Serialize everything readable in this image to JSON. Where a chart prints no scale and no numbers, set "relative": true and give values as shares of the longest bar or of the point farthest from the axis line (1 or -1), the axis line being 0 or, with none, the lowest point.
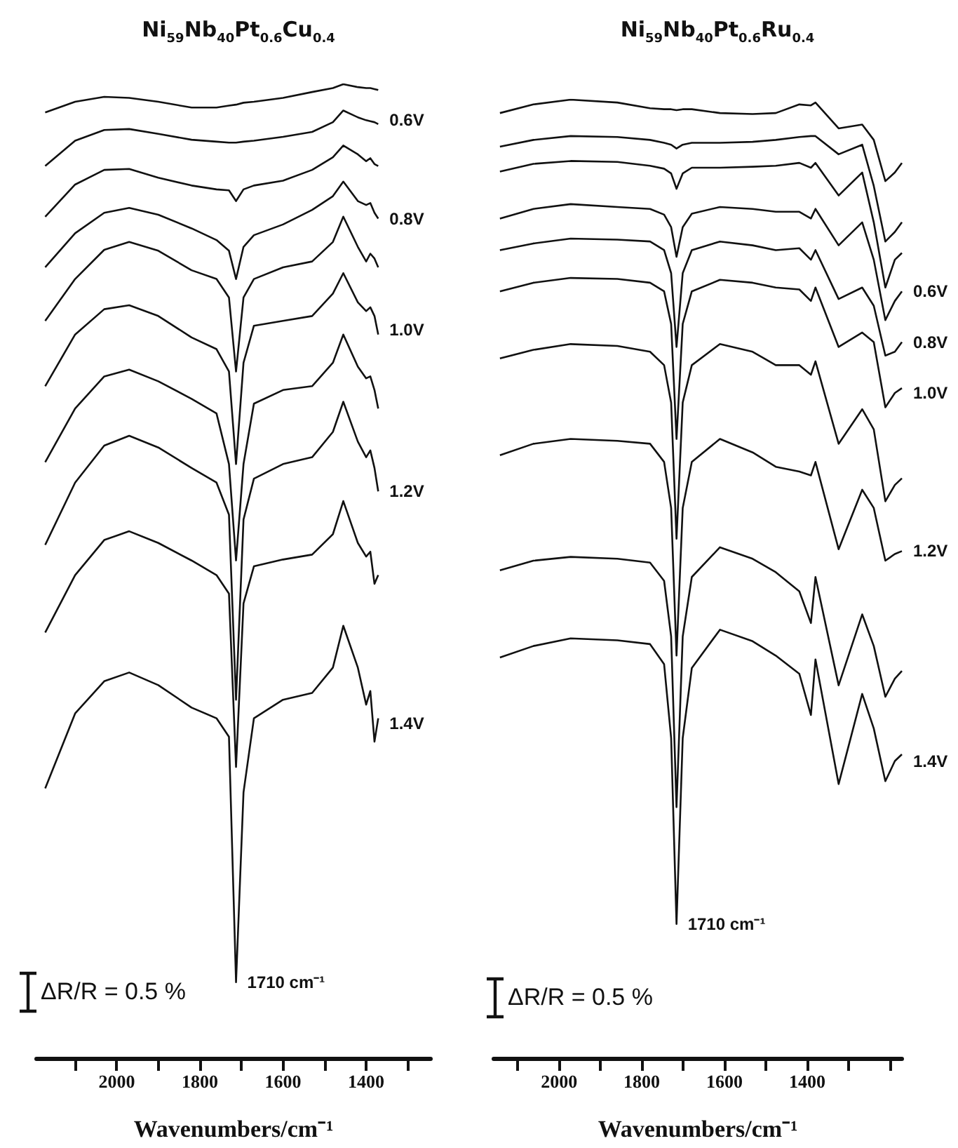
{
  "chart_data": [
    {
      "type": "line",
      "title": "Ni$_{59}$Nb$_{40}$Pt$_{0.6}$Cu$_{0.4}$",
      "xlabel": "Wavenumbers/cm⁻¹",
      "relative": true,
      "tick_labels": "x",
      "xlim": [
        2193,
        1245
      ],
      "xticks": [
        {
          "value": 2100,
          "label": null
        },
        2000,
        {
          "value": 1900,
          "label": null
        },
        1800,
        {
          "value": 1700,
          "label": null
        },
        1600,
        {
          "value": 1500,
          "label": null
        },
        1400,
        {
          "value": 1300,
          "label": null
        }
      ],
      "x": [
        2172,
        2100,
        2030,
        1970,
        1900,
        1820,
        1760,
        1730,
        1713,
        1695,
        1670,
        1600,
        1530,
        1480,
        1455,
        1420,
        1400,
        1390,
        1380,
        1371
      ],
      "series": [
        {
          "color": "#111111",
          "values": [
            0.971,
            0.982,
            0.987,
            0.986,
            0.982,
            0.976,
            0.976,
            0.978,
            0.979,
            0.981,
            0.982,
            0.986,
            0.992,
            0.996,
            1,
            0.997,
            0.996,
            0.996,
            0.995,
            0.994
          ]
        },
        {
          "color": "#111111",
          "values": [
            0.916,
            0.942,
            0.953,
            0.954,
            0.949,
            0.943,
            0.941,
            0.94,
            0.94,
            0.941,
            0.942,
            0.946,
            0.951,
            0.961,
            0.973,
            0.966,
            0.963,
            0.962,
            0.961,
            0.959
          ]
        },
        {
          "color": "#111111",
          "values": [
            0.864,
            0.897,
            0.912,
            0.913,
            0.904,
            0.896,
            0.892,
            0.891,
            0.88,
            0.892,
            0.896,
            0.901,
            0.912,
            0.925,
            0.937,
            0.928,
            0.921,
            0.924,
            0.918,
            0.916
          ]
        },
        {
          "color": "#111111",
          "values": [
            0.812,
            0.847,
            0.868,
            0.873,
            0.866,
            0.852,
            0.84,
            0.829,
            0.8,
            0.833,
            0.845,
            0.856,
            0.871,
            0.885,
            0.9,
            0.88,
            0.876,
            0.878,
            0.868,
            0.862
          ]
        },
        {
          "color": "#111111",
          "values": [
            0.757,
            0.8,
            0.83,
            0.838,
            0.829,
            0.809,
            0.8,
            0.781,
            0.705,
            0.781,
            0.8,
            0.812,
            0.818,
            0.838,
            0.864,
            0.833,
            0.818,
            0.826,
            0.821,
            0.812
          ]
        },
        {
          "color": "#111111",
          "values": [
            0.69,
            0.743,
            0.769,
            0.773,
            0.762,
            0.74,
            0.728,
            0.705,
            0.61,
            0.714,
            0.752,
            0.757,
            0.762,
            0.785,
            0.806,
            0.776,
            0.767,
            0.771,
            0.762,
            0.743
          ]
        },
        {
          "color": "#111111",
          "values": [
            0.612,
            0.667,
            0.7,
            0.707,
            0.695,
            0.677,
            0.662,
            0.61,
            0.511,
            0.61,
            0.672,
            0.686,
            0.69,
            0.714,
            0.743,
            0.71,
            0.698,
            0.7,
            0.686,
            0.667
          ]
        },
        {
          "color": "#111111",
          "values": [
            0.527,
            0.591,
            0.629,
            0.639,
            0.627,
            0.606,
            0.591,
            0.558,
            0.368,
            0.553,
            0.595,
            0.61,
            0.617,
            0.643,
            0.674,
            0.633,
            0.617,
            0.624,
            0.606,
            0.582
          ]
        },
        {
          "color": "#111111",
          "values": [
            0.437,
            0.496,
            0.532,
            0.541,
            0.529,
            0.511,
            0.496,
            0.477,
            0.299,
            0.467,
            0.505,
            0.512,
            0.517,
            0.538,
            0.572,
            0.529,
            0.515,
            0.52,
            0.487,
            0.496
          ]
        },
        {
          "color": "#111111",
          "values": [
            0.277,
            0.354,
            0.387,
            0.396,
            0.383,
            0.36,
            0.349,
            0.33,
            0.078,
            0.273,
            0.349,
            0.368,
            0.375,
            0.401,
            0.444,
            0.401,
            0.363,
            0.377,
            0.325,
            0.349
          ]
        }
      ],
      "annotations": [
        {
          "text": "0.6V",
          "x": 1371,
          "y": 0.963
        },
        {
          "text": "0.8V",
          "x": 1371,
          "y": 0.862
        },
        {
          "text": "1.0V",
          "x": 1371,
          "y": 0.748
        },
        {
          "text": "1.2V",
          "x": 1371,
          "y": 0.582
        },
        {
          "text": "1.4V",
          "x": 1371,
          "y": 0.344
        },
        {
          "text": "1710 cm⁻¹",
          "x": 1713,
          "y": 0.078
        },
        "ΔR/R = 0.5 %"
      ]
    },
    {
      "type": "line",
      "title": "Ni$_{59}$Nb$_{40}$Pt$_{0.6}$Ru$_{0.4}$",
      "xlabel": "Wavenumbers/cm⁻¹",
      "relative": true,
      "tick_labels": "x",
      "xlim": [
        2158,
        1171
      ],
      "xticks": [
        {
          "value": 2100,
          "label": null
        },
        2000,
        {
          "value": 1900,
          "label": null
        },
        1800,
        {
          "value": 1700,
          "label": null
        },
        1600,
        {
          "value": 1500,
          "label": null
        },
        1400,
        {
          "value": 1300,
          "label": null
        },
        {
          "value": 1200,
          "label": null
        }
      ],
      "x": [
        2143,
        2062,
        1972,
        1859,
        1780,
        1746,
        1729,
        1716,
        1701,
        1679,
        1611,
        1532,
        1476,
        1419,
        1391,
        1380,
        1324,
        1267,
        1239,
        1211,
        1188,
        1171
      ],
      "series": [
        {
          "color": "#111111",
          "values": [
            0.986,
            0.995,
            1,
            0.997,
            0.991,
            0.99,
            0.99,
            0.989,
            0.99,
            0.99,
            0.986,
            0.985,
            0.986,
            0.995,
            0.994,
            0.997,
            0.97,
            0.974,
            0.958,
            0.915,
            0.924,
            0.934
          ]
        },
        {
          "color": "#111111",
          "values": [
            0.951,
            0.958,
            0.962,
            0.961,
            0.958,
            0.955,
            0.953,
            0.949,
            0.953,
            0.955,
            0.955,
            0.956,
            0.958,
            0.961,
            0.962,
            0.962,
            0.943,
            0.953,
            0.91,
            0.852,
            0.862,
            0.872
          ]
        },
        {
          "color": "#111111",
          "values": [
            0.925,
            0.933,
            0.936,
            0.935,
            0.931,
            0.928,
            0.923,
            0.907,
            0.923,
            0.929,
            0.929,
            0.93,
            0.931,
            0.934,
            0.929,
            0.934,
            0.9,
            0.924,
            0.872,
            0.804,
            0.833,
            0.84
          ]
        },
        {
          "color": "#111111",
          "values": [
            0.876,
            0.886,
            0.891,
            0.888,
            0.886,
            0.88,
            0.867,
            0.836,
            0.867,
            0.881,
            0.888,
            0.886,
            0.883,
            0.883,
            0.876,
            0.886,
            0.848,
            0.872,
            0.833,
            0.77,
            0.79,
            0.8
          ]
        },
        {
          "color": "#111111",
          "values": [
            0.843,
            0.85,
            0.855,
            0.854,
            0.852,
            0.843,
            0.819,
            0.742,
            0.819,
            0.843,
            0.852,
            0.848,
            0.843,
            0.845,
            0.833,
            0.843,
            0.792,
            0.804,
            0.785,
            0.733,
            0.737,
            0.747
          ]
        },
        {
          "color": "#111111",
          "values": [
            0.8,
            0.809,
            0.814,
            0.813,
            0.809,
            0.8,
            0.766,
            0.646,
            0.766,
            0.8,
            0.812,
            0.809,
            0.804,
            0.802,
            0.79,
            0.804,
            0.742,
            0.757,
            0.747,
            0.679,
            0.694,
            0.699
          ]
        },
        {
          "color": "#111111",
          "values": [
            0.73,
            0.739,
            0.745,
            0.743,
            0.737,
            0.723,
            0.684,
            0.542,
            0.684,
            0.723,
            0.745,
            0.737,
            0.723,
            0.723,
            0.713,
            0.727,
            0.641,
            0.677,
            0.656,
            0.581,
            0.598,
            0.605
          ]
        },
        {
          "color": "#111111",
          "values": [
            0.629,
            0.641,
            0.646,
            0.644,
            0.641,
            0.622,
            0.574,
            0.42,
            0.574,
            0.622,
            0.646,
            0.632,
            0.617,
            0.612,
            0.608,
            0.622,
            0.531,
            0.593,
            0.574,
            0.519,
            0.526,
            0.529
          ]
        },
        {
          "color": "#111111",
          "values": [
            0.509,
            0.519,
            0.523,
            0.521,
            0.517,
            0.498,
            0.44,
            0.262,
            0.44,
            0.502,
            0.533,
            0.521,
            0.507,
            0.487,
            0.454,
            0.502,
            0.389,
            0.463,
            0.43,
            0.377,
            0.396,
            0.404
          ]
        },
        {
          "color": "#111111",
          "values": [
            0.418,
            0.43,
            0.438,
            0.436,
            0.432,
            0.411,
            0.334,
            0.14,
            0.334,
            0.407,
            0.447,
            0.435,
            0.42,
            0.401,
            0.358,
            0.416,
            0.286,
            0.38,
            0.344,
            0.289,
            0.31,
            0.317
          ]
        }
      ],
      "annotations": [
        {
          "text": "0.6V",
          "x": 1171,
          "y": 0.8
        },
        {
          "text": "0.8V",
          "x": 1171,
          "y": 0.747
        },
        {
          "text": "1.0V",
          "x": 1171,
          "y": 0.694
        },
        {
          "text": "1.2V",
          "x": 1171,
          "y": 0.529
        },
        {
          "text": "1.4V",
          "x": 1171,
          "y": 0.31
        },
        {
          "text": "1710 cm⁻¹",
          "x": 1716,
          "y": 0.14
        },
        "ΔR/R = 0.5 %"
      ]
    }
  ]
}
